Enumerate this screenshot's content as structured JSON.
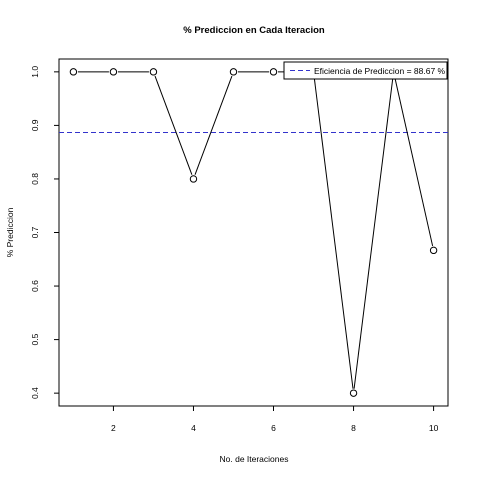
{
  "chart_data": {
    "type": "line",
    "title": "% Prediccion en Cada Iteracion",
    "xlabel": "No. de Iteraciones",
    "ylabel": "% Prediccion",
    "x": [
      1,
      2,
      3,
      4,
      5,
      6,
      7,
      8,
      9,
      10
    ],
    "series": [
      {
        "values": [
          1.0,
          1.0,
          1.0,
          0.8,
          1.0,
          1.0,
          1.0,
          0.4,
          1.0,
          0.6667
        ],
        "color": "#000000",
        "marker": "open-circle"
      }
    ],
    "xlim": [
      0.64,
      10.36
    ],
    "ylim": [
      0.376,
      1.024
    ],
    "x_ticks": [
      2,
      4,
      6,
      8,
      10
    ],
    "y_ticks": [
      0.4,
      0.5,
      0.6,
      0.7,
      0.8,
      0.9,
      1.0
    ],
    "x_tick_labels": [
      "2",
      "4",
      "6",
      "8",
      "10"
    ],
    "y_tick_labels": [
      "0.4",
      "0.5",
      "0.6",
      "0.7",
      "0.8",
      "0.9",
      "1.0"
    ],
    "reference_line": {
      "y": 0.8867,
      "color": "#3333cc",
      "style": "dashed"
    },
    "legend": {
      "position": "top-right",
      "entries": [
        {
          "label": "Eficiencia de Prediccion = 88.67 %",
          "color": "#3333cc",
          "style": "dashed"
        }
      ]
    },
    "grid": false
  }
}
